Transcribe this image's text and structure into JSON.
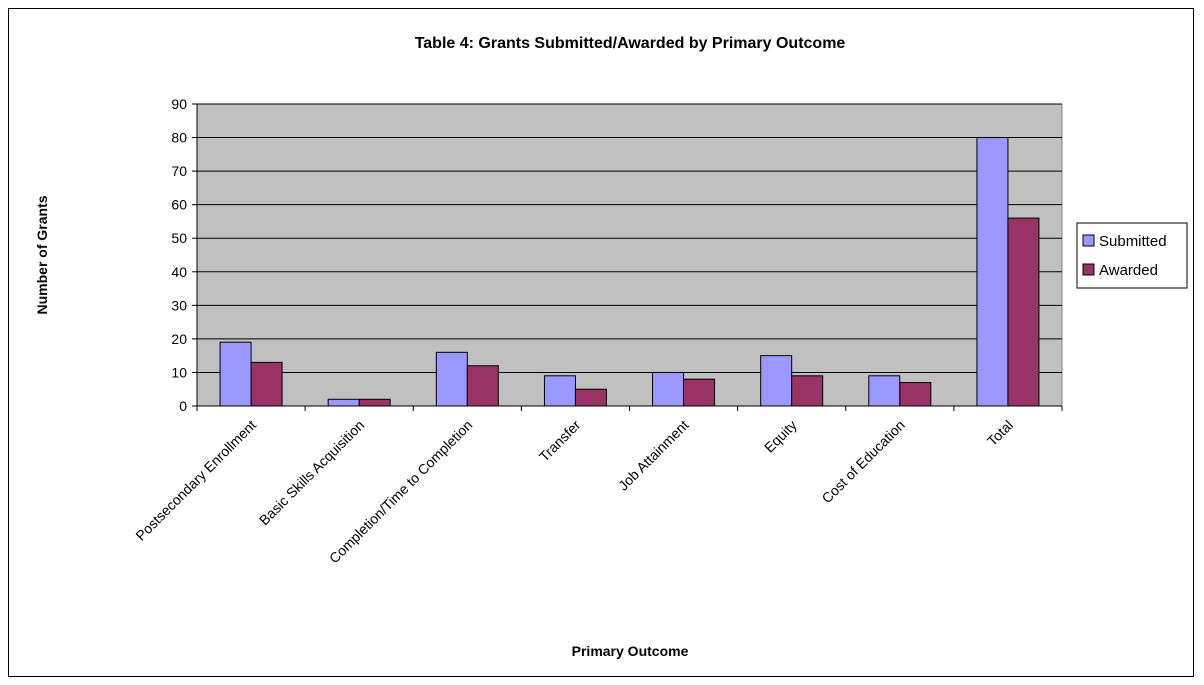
{
  "chart_data": {
    "type": "bar",
    "title": "Table 4:  Grants Submitted/Awarded by Primary Outcome",
    "xlabel": "Primary Outcome",
    "ylabel": "Number of Grants",
    "categories": [
      "Postsecondary Enrollment",
      "Basic Skills Acquisition",
      "Completion/Time to Completion",
      "Transfer",
      "Job Attainment",
      "Equity",
      "Cost of Education",
      "Total"
    ],
    "series": [
      {
        "name": "Submitted",
        "color": "#9999ff",
        "values": [
          19,
          2,
          16,
          9,
          10,
          15,
          9,
          80
        ]
      },
      {
        "name": "Awarded",
        "color": "#993366",
        "values": [
          13,
          2,
          12,
          5,
          8,
          9,
          7,
          56
        ]
      }
    ],
    "ylim": [
      0,
      90
    ],
    "yticks": [
      0,
      10,
      20,
      30,
      40,
      50,
      60,
      70,
      80,
      90
    ],
    "grid": true,
    "plot_background": "#c0c0c0",
    "legend_position": "right"
  }
}
